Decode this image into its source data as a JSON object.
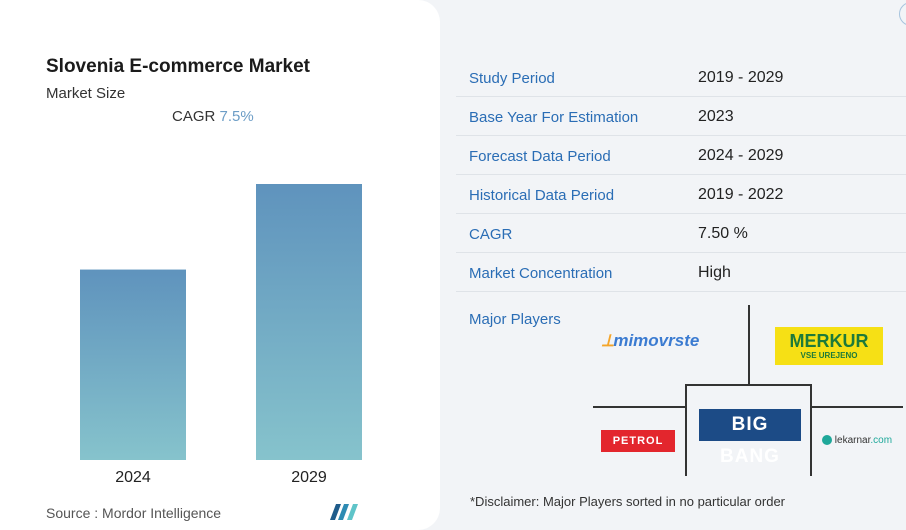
{
  "card": {
    "title": "Slovenia E-commerce Market",
    "subtitle": "Market Size",
    "cagr_label": "CAGR",
    "cagr_value": "7.5%",
    "source": "Source : Mordor Intelligence"
  },
  "chart_data": {
    "type": "bar",
    "categories": [
      "2024",
      "2029"
    ],
    "values": [
      0.69,
      1.0
    ],
    "title": "Slovenia E-commerce Market",
    "subtitle": "Market Size",
    "annotation": "CAGR 7.5%",
    "xlabel": "",
    "ylabel": "",
    "grid": false,
    "colors": {
      "top": "#5f93bd",
      "bottom": "#86c3cc"
    }
  },
  "details": [
    {
      "key": "Study Period",
      "value": "2019 - 2029"
    },
    {
      "key": "Base Year For Estimation",
      "value": "2023"
    },
    {
      "key": "Forecast Data Period",
      "value": "2024 - 2029"
    },
    {
      "key": "Historical Data Period",
      "value": "2019 - 2022"
    },
    {
      "key": "CAGR",
      "value": "7.50 %"
    },
    {
      "key": "Market Concentration",
      "value": "High"
    }
  ],
  "major_players": {
    "label": "Major Players",
    "logos": {
      "mimovrste": "mimovrste",
      "merkur": "MERKUR",
      "merkur_tag": "VSE UREJENO",
      "bigbang": "BIG BANG",
      "petrol": "PETROL",
      "lekarnar_main": "lekarnar",
      "lekarnar_suffix": ".com"
    },
    "disclaimer": "*Disclaimer: Major Players sorted in no particular order"
  }
}
